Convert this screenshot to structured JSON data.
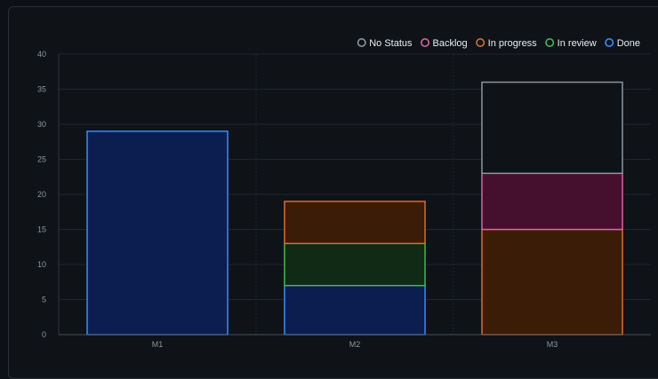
{
  "chart_data": {
    "type": "bar",
    "stacked": true,
    "categories": [
      "M1",
      "M2",
      "M3"
    ],
    "ylim": [
      0,
      40
    ],
    "yticks": [
      0,
      5,
      10,
      15,
      20,
      25,
      30,
      35,
      40
    ],
    "grid": true,
    "legend_position": "top-right",
    "series": [
      {
        "name": "No Status",
        "color": "#8b949e",
        "fill": "#0f1318",
        "values": [
          0,
          0,
          13
        ]
      },
      {
        "name": "Backlog",
        "color": "#db61a2",
        "fill": "#45102d",
        "values": [
          0,
          0,
          8
        ]
      },
      {
        "name": "In progress",
        "color": "#db6d28",
        "fill": "#3b1c07",
        "values": [
          0,
          6,
          15
        ]
      },
      {
        "name": "In review",
        "color": "#3fb950",
        "fill": "#102a15",
        "values": [
          0,
          6,
          0
        ]
      },
      {
        "name": "Done",
        "color": "#388bfd",
        "fill": "#0c1d50",
        "values": [
          29,
          7,
          0
        ]
      }
    ],
    "stack_order": [
      "Done",
      "In review",
      "In progress",
      "Backlog",
      "No Status"
    ]
  }
}
